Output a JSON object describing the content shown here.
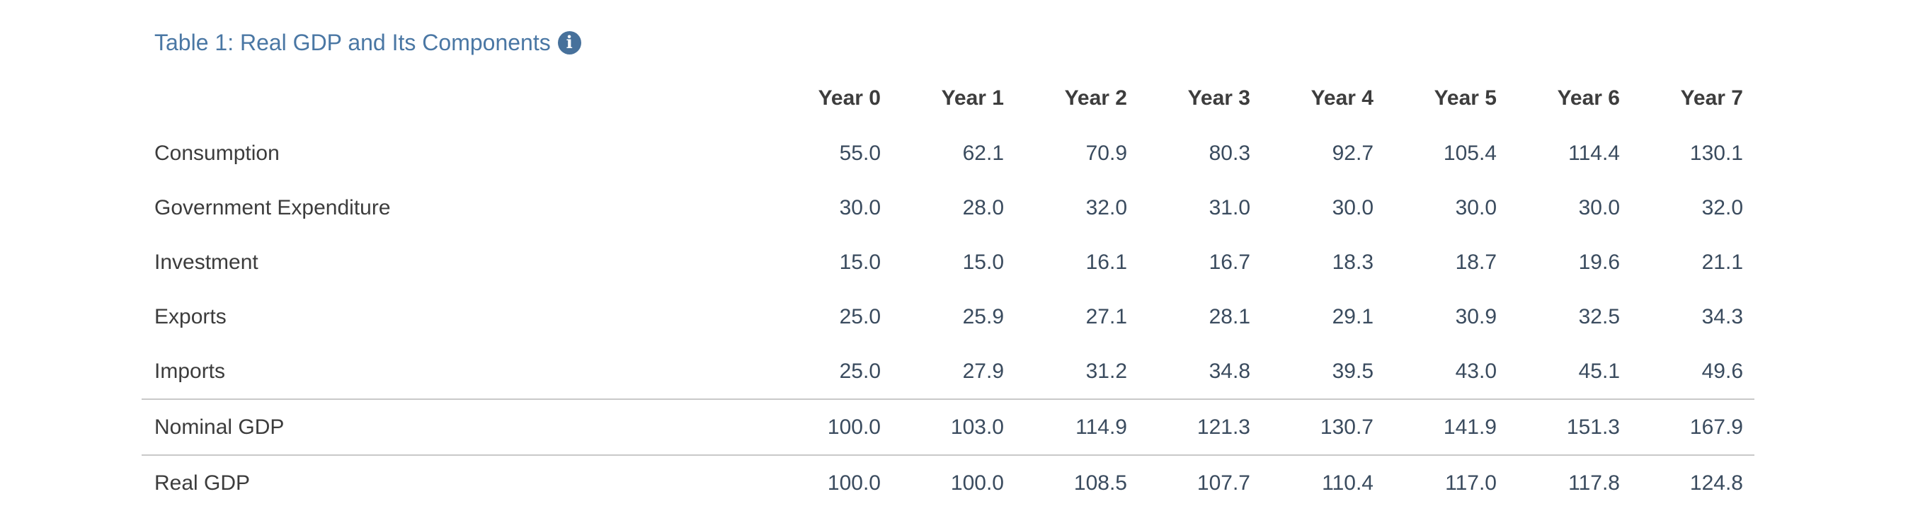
{
  "title": "Table 1: Real GDP and Its Components",
  "info_icon": {
    "glyph": "i",
    "meaning": "info-tooltip"
  },
  "colors": {
    "title_accent": "#4a77a4",
    "info_badge_bg": "#47719b",
    "number_text": "#3a4b5e",
    "label_text": "#3c3c3c",
    "rule_line": "#c9c9c9"
  },
  "table": {
    "header": [
      "Year 0",
      "Year 1",
      "Year 2",
      "Year 3",
      "Year 4",
      "Year 5",
      "Year 6",
      "Year 7"
    ],
    "rows": [
      {
        "label": "Consumption",
        "rule": false,
        "values": [
          "55.0",
          "62.1",
          "70.9",
          "80.3",
          "92.7",
          "105.4",
          "114.4",
          "130.1"
        ]
      },
      {
        "label": "Government Expenditure",
        "rule": false,
        "values": [
          "30.0",
          "28.0",
          "32.0",
          "31.0",
          "30.0",
          "30.0",
          "30.0",
          "32.0"
        ]
      },
      {
        "label": "Investment",
        "rule": false,
        "values": [
          "15.0",
          "15.0",
          "16.1",
          "16.7",
          "18.3",
          "18.7",
          "19.6",
          "21.1"
        ]
      },
      {
        "label": "Exports",
        "rule": false,
        "values": [
          "25.0",
          "25.9",
          "27.1",
          "28.1",
          "29.1",
          "30.9",
          "32.5",
          "34.3"
        ]
      },
      {
        "label": "Imports",
        "rule": false,
        "values": [
          "25.0",
          "27.9",
          "31.2",
          "34.8",
          "39.5",
          "43.0",
          "45.1",
          "49.6"
        ]
      },
      {
        "label": "Nominal GDP",
        "rule": true,
        "values": [
          "100.0",
          "103.0",
          "114.9",
          "121.3",
          "130.7",
          "141.9",
          "151.3",
          "167.9"
        ]
      },
      {
        "label": "Real GDP",
        "rule": true,
        "values": [
          "100.0",
          "100.0",
          "108.5",
          "107.7",
          "110.4",
          "117.0",
          "117.8",
          "124.8"
        ]
      }
    ]
  }
}
